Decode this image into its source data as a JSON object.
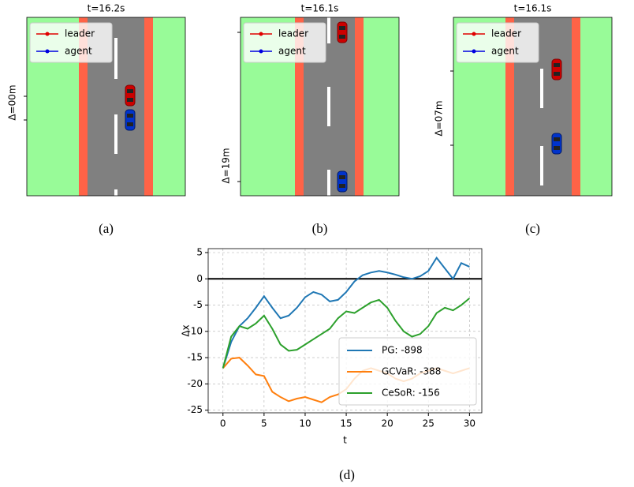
{
  "panels": [
    {
      "title": "t=16.2s",
      "ylabel": "Δ=00m",
      "legend": [
        "leader",
        "agent"
      ],
      "caption": "(a)"
    },
    {
      "title": "t=16.1s",
      "ylabel": "Δ=19m",
      "legend": [
        "leader",
        "agent"
      ],
      "caption": "(b)"
    },
    {
      "title": "t=16.1s",
      "ylabel": "Δ=07m",
      "legend": [
        "leader",
        "agent"
      ],
      "caption": "(c)"
    }
  ],
  "chart_data": {
    "type": "line",
    "caption": "(d)",
    "xlabel": "t",
    "ylabel": "Δx",
    "x": [
      0,
      1,
      2,
      3,
      4,
      5,
      6,
      7,
      8,
      9,
      10,
      11,
      12,
      13,
      14,
      15,
      16,
      17,
      18,
      19,
      20,
      21,
      22,
      23,
      24,
      25,
      26,
      27,
      28,
      29,
      30
    ],
    "series": [
      {
        "name": "PG: -898",
        "color": "#1f77b4",
        "values": [
          -17,
          -12,
          -9,
          -7.5,
          -5.5,
          -3.3,
          -5.5,
          -7.5,
          -7,
          -5.5,
          -3.5,
          -2.5,
          -3,
          -4.3,
          -4,
          -2.5,
          -0.5,
          0.7,
          1.2,
          1.5,
          1.2,
          0.8,
          0.3,
          0,
          0.5,
          1.5,
          4,
          2,
          0,
          3,
          2.3
        ]
      },
      {
        "name": "GCVaR: -388",
        "color": "#ff7f0e",
        "values": [
          -17,
          -15.2,
          -15,
          -16.5,
          -18.2,
          -18.5,
          -21.5,
          -22.5,
          -23.3,
          -22.8,
          -22.5,
          -23,
          -23.5,
          -22.5,
          -22,
          -21,
          -19,
          -17.5,
          -17,
          -17.5,
          -18,
          -19,
          -19.5,
          -19,
          -18,
          -17.5,
          -17,
          -17.5,
          -18,
          -17.5,
          -17
        ]
      },
      {
        "name": "CeSoR: -156",
        "color": "#2ca02c",
        "values": [
          -17,
          -11,
          -9,
          -9.5,
          -8.5,
          -7,
          -9.5,
          -12.5,
          -13.7,
          -13.5,
          -12.5,
          -11.5,
          -10.5,
          -9.5,
          -7.5,
          -6.2,
          -6.5,
          -5.5,
          -4.5,
          -4,
          -5.5,
          -8,
          -10,
          -11,
          -10.5,
          -9,
          -6.5,
          -5.5,
          -6,
          -5,
          -3.7
        ]
      }
    ],
    "hline": 0,
    "xlim": [
      -1.8,
      31.5
    ],
    "ylim": [
      -25.5,
      5.75
    ],
    "xticks": [
      0,
      5,
      10,
      15,
      20,
      25,
      30
    ],
    "yticks": [
      5,
      0,
      -5,
      -10,
      -15,
      -20,
      -25
    ],
    "grid": true,
    "legend": "lower right"
  }
}
